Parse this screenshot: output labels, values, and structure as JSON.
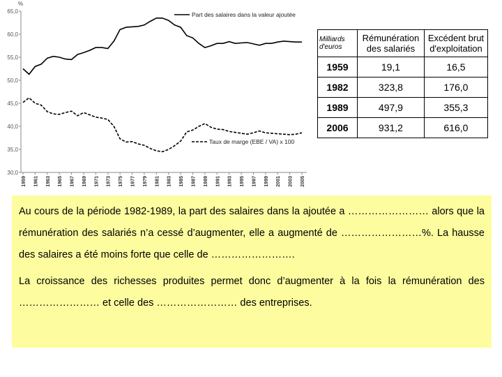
{
  "chart_data": {
    "type": "line",
    "y_unit": "%",
    "x": [
      1959,
      1960,
      1961,
      1962,
      1963,
      1964,
      1965,
      1966,
      1967,
      1968,
      1969,
      1970,
      1971,
      1972,
      1973,
      1974,
      1975,
      1976,
      1977,
      1978,
      1979,
      1980,
      1981,
      1982,
      1983,
      1984,
      1985,
      1986,
      1987,
      1988,
      1989,
      1990,
      1991,
      1992,
      1993,
      1994,
      1995,
      1996,
      1997,
      1998,
      1999,
      2000,
      2001,
      2002,
      2003,
      2004,
      2005
    ],
    "series": [
      {
        "name": "Part des salaires dans la valeur ajoutée",
        "color": "#000000",
        "style": "solid",
        "values": [
          52.5,
          51.3,
          53.0,
          53.5,
          54.8,
          55.2,
          55.0,
          54.6,
          54.5,
          55.6,
          56.0,
          56.5,
          57.1,
          57.1,
          56.9,
          58.5,
          61.0,
          61.5,
          61.6,
          61.7,
          62.0,
          62.8,
          63.5,
          63.5,
          63.0,
          62.0,
          61.5,
          59.7,
          59.2,
          58.0,
          57.1,
          57.5,
          58.0,
          58.0,
          58.4,
          58.0,
          58.1,
          58.2,
          57.9,
          57.6,
          58.0,
          58.0,
          58.3,
          58.5,
          58.4,
          58.3,
          58.3
        ]
      },
      {
        "name": "Taux de marge (EBE / VA) x 100",
        "color": "#000000",
        "style": "dashed",
        "values": [
          45.2,
          46.2,
          45.0,
          44.6,
          43.2,
          42.7,
          42.6,
          43.0,
          43.3,
          42.3,
          43.0,
          42.5,
          42.0,
          41.8,
          41.5,
          40.0,
          37.3,
          36.6,
          36.7,
          36.2,
          35.9,
          35.2,
          34.7,
          34.5,
          35.0,
          35.8,
          36.8,
          38.8,
          39.2,
          40.0,
          40.6,
          39.8,
          39.4,
          39.3,
          38.9,
          38.7,
          38.5,
          38.3,
          38.6,
          39.0,
          38.6,
          38.5,
          38.4,
          38.3,
          38.2,
          38.3,
          38.6
        ]
      }
    ],
    "xlim": [
      1959,
      2005
    ],
    "xticks": [
      1959,
      1961,
      1963,
      1965,
      1967,
      1969,
      1971,
      1973,
      1975,
      1977,
      1979,
      1981,
      1983,
      1985,
      1987,
      1989,
      1991,
      1993,
      1995,
      1997,
      1999,
      2001,
      2003,
      2005
    ],
    "ylim": [
      30,
      65
    ],
    "yticks": [
      {
        "value": 30,
        "label": "30,0"
      },
      {
        "value": 35,
        "label": "35,0"
      },
      {
        "value": 40,
        "label": "40,0"
      },
      {
        "value": 45,
        "label": "45,0"
      },
      {
        "value": 50,
        "label": "50,0"
      },
      {
        "value": 55,
        "label": "55,0"
      },
      {
        "value": 60,
        "label": "60,0"
      },
      {
        "value": 65,
        "label": "65,0"
      }
    ],
    "grid": false
  },
  "table": {
    "header": [
      "Milliards d'euros",
      "Rémunération des salariés",
      "Excédent brut d'exploitation"
    ],
    "rows": [
      [
        "1959",
        "19,1",
        "16,5"
      ],
      [
        "1982",
        "323,8",
        "176,0"
      ],
      [
        "1989",
        "497,9",
        "355,3"
      ],
      [
        "2006",
        "931,2",
        "616,0"
      ]
    ]
  },
  "text": {
    "paragraphs": [
      "Au cours de la période 1982-1989, la part des salaires dans la ajoutée a …………………… alors que la rémunération des salariés n’a cessé d’augmenter, elle a augmenté de ……………………%. La hausse des salaires a été moins forte que celle de …………………….",
      "La croissance des richesses produites permet donc d’augmenter à la fois la rémunération des …………………… et celle des …………………… des entreprises."
    ]
  }
}
